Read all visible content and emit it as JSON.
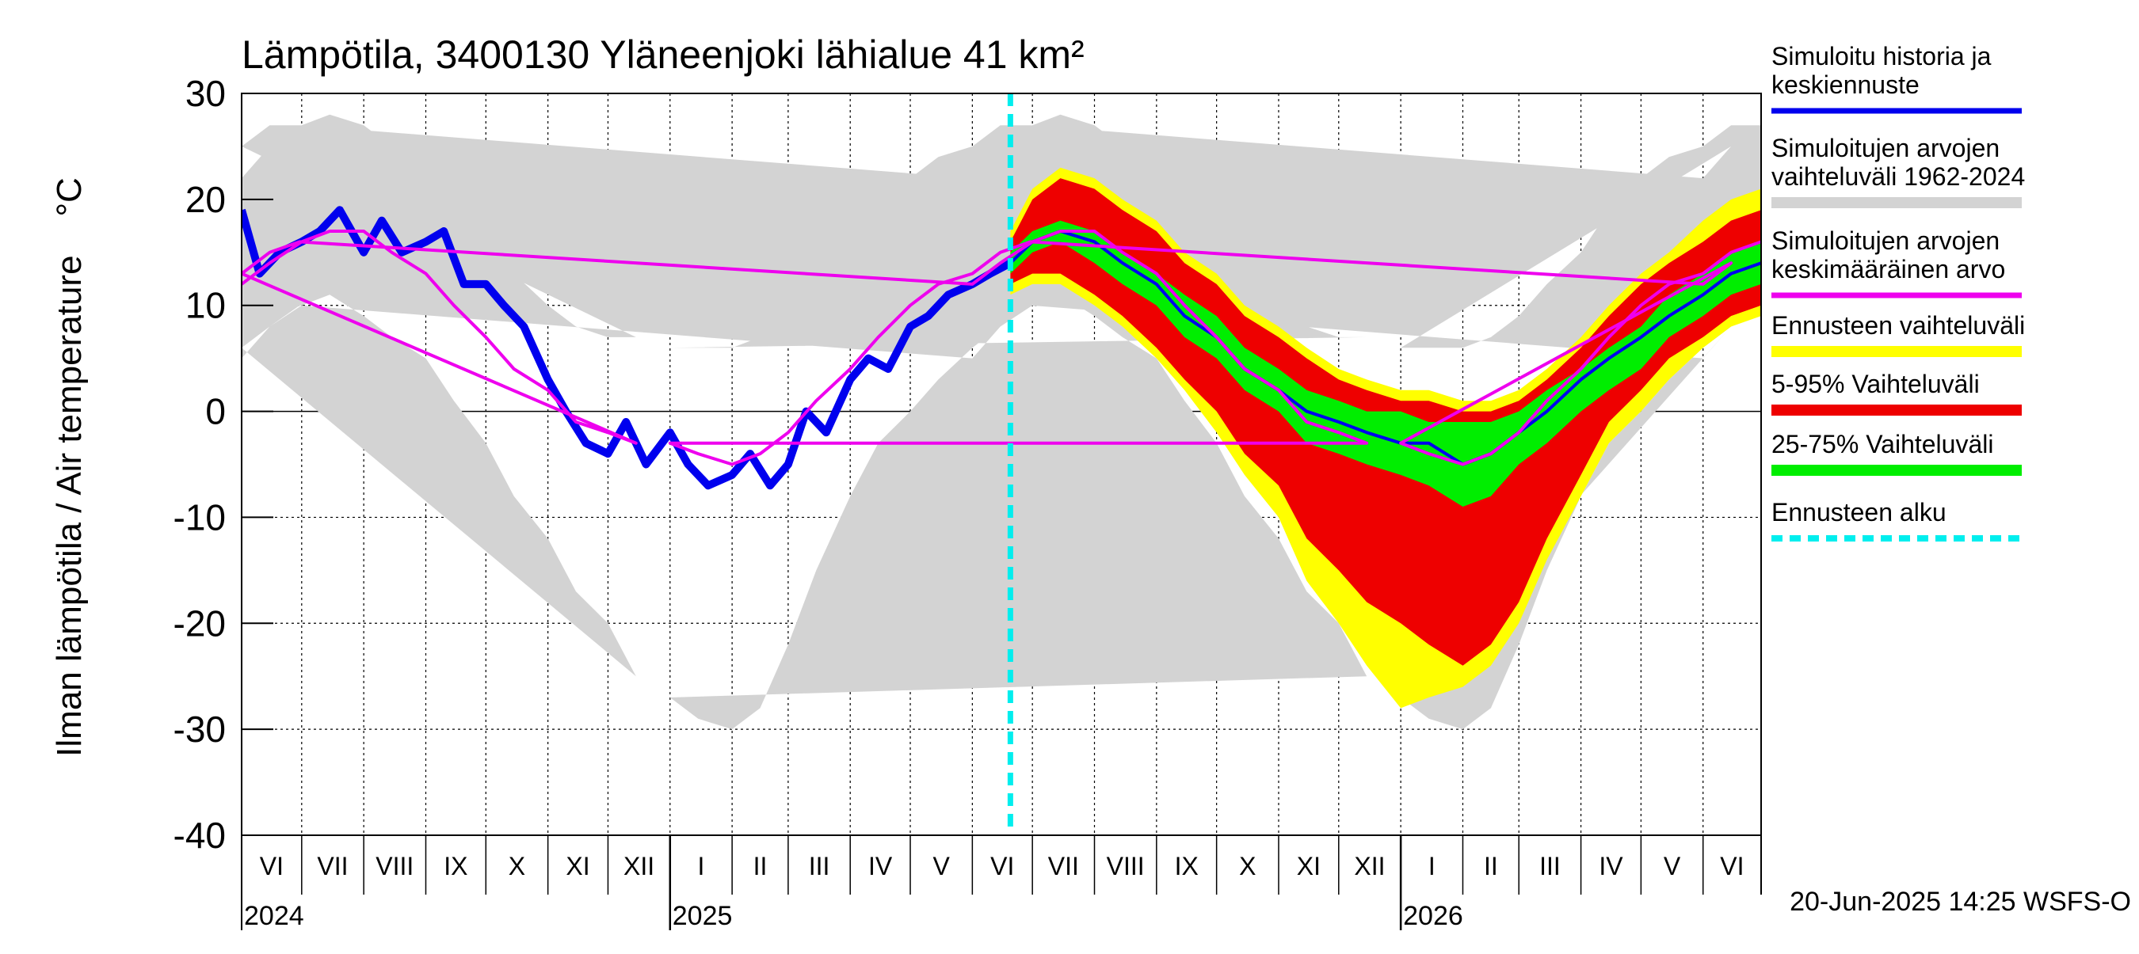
{
  "chart_data": {
    "type": "area",
    "title": "Lämpötila, 3400130 Yläneenjoki lähialue 41 km²",
    "ylabel": "Ilman lämpötila / Air temperature    °C",
    "ylim": [
      -40,
      30
    ],
    "yticks": [
      30,
      20,
      10,
      0,
      -10,
      -20,
      -30,
      -40
    ],
    "ytick_labels": [
      "30",
      "20",
      "10",
      "0",
      "-10",
      "-20",
      "-30",
      "-40"
    ],
    "x_range": [
      "2024-06-01",
      "2026-06-30"
    ],
    "grid": true,
    "legend_position": "right",
    "months": [
      {
        "label": "VI",
        "date": "2024-06-01"
      },
      {
        "label": "VII",
        "date": "2024-07-01"
      },
      {
        "label": "VIII",
        "date": "2024-08-01"
      },
      {
        "label": "IX",
        "date": "2024-09-01"
      },
      {
        "label": "X",
        "date": "2024-10-01"
      },
      {
        "label": "XI",
        "date": "2024-11-01"
      },
      {
        "label": "XII",
        "date": "2024-12-01"
      },
      {
        "label": "I",
        "date": "2025-01-01"
      },
      {
        "label": "II",
        "date": "2025-02-01"
      },
      {
        "label": "III",
        "date": "2025-03-01"
      },
      {
        "label": "IV",
        "date": "2025-04-01"
      },
      {
        "label": "V",
        "date": "2025-05-01"
      },
      {
        "label": "VI",
        "date": "2025-06-01"
      },
      {
        "label": "VII",
        "date": "2025-07-01"
      },
      {
        "label": "VIII",
        "date": "2025-08-01"
      },
      {
        "label": "IX",
        "date": "2025-09-01"
      },
      {
        "label": "X",
        "date": "2025-10-01"
      },
      {
        "label": "XI",
        "date": "2025-11-01"
      },
      {
        "label": "XII",
        "date": "2025-12-01"
      },
      {
        "label": "I",
        "date": "2026-01-01"
      },
      {
        "label": "II",
        "date": "2026-02-01"
      },
      {
        "label": "III",
        "date": "2026-03-01"
      },
      {
        "label": "IV",
        "date": "2026-04-01"
      },
      {
        "label": "V",
        "date": "2026-05-01"
      },
      {
        "label": "VI",
        "date": "2026-06-01"
      },
      {
        "label": "",
        "date": "2026-07-01"
      }
    ],
    "years": [
      {
        "label": "2024",
        "date": "2024-06-01"
      },
      {
        "label": "2025",
        "date": "2025-01-01"
      },
      {
        "label": "2026",
        "date": "2026-01-01"
      }
    ],
    "forecast_start": "2025-06-20",
    "footer": "20-Jun-2025 14:25 WSFS-O",
    "colors": {
      "history": "#0000ee",
      "range_1962_2024": "#d3d3d3",
      "mean": "#ee00ee",
      "forecast_range": "#ffff00",
      "p5_95": "#ee0000",
      "p25_75": "#00ee00",
      "forecast_start": "#00eeee"
    },
    "series": [
      {
        "name": "Simuloitu historia ja keskiennuste",
        "key": "history",
        "style": "line"
      },
      {
        "name": "Simuloitujen arvojen vaihteluväli 1962-2024",
        "key": "range_1962_2024",
        "style": "band"
      },
      {
        "name": "Simuloitujen arvojen keskimääräinen arvo",
        "key": "mean",
        "style": "line"
      },
      {
        "name": "Ennusteen vaihteluväli",
        "key": "forecast_range",
        "style": "band"
      },
      {
        "name": "5-95% Vaihteluväli",
        "key": "p5_95",
        "style": "band"
      },
      {
        "name": "25-75% Vaihteluväli",
        "key": "p25_75",
        "style": "band"
      },
      {
        "name": "Ennusteen alku",
        "key": "forecast_start",
        "style": "dashed"
      }
    ],
    "climatology": {
      "date": [
        "06-01",
        "06-15",
        "07-01",
        "07-15",
        "08-01",
        "08-15",
        "09-01",
        "09-15",
        "10-01",
        "10-15",
        "11-01",
        "11-15",
        "12-01",
        "12-15",
        "01-01",
        "01-15",
        "02-01",
        "02-15",
        "03-01",
        "03-15",
        "04-01",
        "04-15",
        "05-01",
        "05-15",
        "06-01",
        "06-15",
        "06-30"
      ],
      "mean": [
        12,
        14,
        16,
        17,
        17,
        15,
        13,
        10,
        7,
        4,
        2,
        -1,
        -2,
        -3,
        -3,
        -4,
        -5,
        -4,
        -2,
        1,
        4,
        7,
        10,
        12,
        13,
        15,
        16
      ],
      "min": [
        5,
        8,
        10,
        11,
        9,
        7,
        5,
        1,
        -3,
        -8,
        -12,
        -17,
        -20,
        -25,
        -27,
        -29,
        -30,
        -28,
        -22,
        -15,
        -8,
        -3,
        0,
        3,
        6,
        8,
        10
      ],
      "max": [
        22,
        25,
        27,
        28,
        27,
        25,
        22,
        19,
        16,
        13,
        10,
        8,
        7,
        7,
        6,
        6,
        6,
        7,
        9,
        12,
        15,
        19,
        22,
        24,
        25,
        27,
        27
      ]
    },
    "history": {
      "date": [
        "2024-06-01",
        "2024-06-10",
        "2024-06-20",
        "2024-07-01",
        "2024-07-10",
        "2024-07-20",
        "2024-08-01",
        "2024-08-10",
        "2024-08-20",
        "2024-09-01",
        "2024-09-10",
        "2024-09-20",
        "2024-10-01",
        "2024-10-10",
        "2024-10-20",
        "2024-11-01",
        "2024-11-10",
        "2024-11-20",
        "2024-12-01",
        "2024-12-10",
        "2024-12-20",
        "2025-01-01",
        "2025-01-10",
        "2025-01-20",
        "2025-02-01",
        "2025-02-10",
        "2025-02-20",
        "2025-03-01",
        "2025-03-10",
        "2025-03-20",
        "2025-04-01",
        "2025-04-10",
        "2025-04-20",
        "2025-05-01",
        "2025-05-10",
        "2025-05-20",
        "2025-06-01",
        "2025-06-10",
        "2025-06-20"
      ],
      "value": [
        19,
        13,
        15,
        16,
        17,
        19,
        15,
        18,
        15,
        16,
        17,
        12,
        12,
        10,
        8,
        3,
        0,
        -3,
        -4,
        -1,
        -5,
        -2,
        -5,
        -7,
        -6,
        -4,
        -7,
        -5,
        0,
        -2,
        3,
        5,
        4,
        8,
        9,
        11,
        12,
        13,
        14
      ]
    },
    "forecast": {
      "date": [
        "2025-06-20",
        "2025-07-01",
        "2025-07-15",
        "2025-08-01",
        "2025-08-15",
        "2025-09-01",
        "2025-09-15",
        "2025-10-01",
        "2025-10-15",
        "2025-11-01",
        "2025-11-15",
        "2025-12-01",
        "2025-12-15",
        "2026-01-01",
        "2026-01-15",
        "2026-02-01",
        "2026-02-15",
        "2026-03-01",
        "2026-03-15",
        "2026-04-01",
        "2026-04-15",
        "2026-05-01",
        "2026-05-15",
        "2026-06-01",
        "2026-06-15",
        "2026-06-30"
      ],
      "median": [
        14,
        16,
        17,
        16,
        14,
        12,
        9,
        7,
        4,
        2,
        0,
        -1,
        -2,
        -3,
        -3,
        -5,
        -4,
        -2,
        0,
        3,
        5,
        7,
        9,
        11,
        13,
        14
      ],
      "mean": [
        14,
        16,
        17,
        16,
        14,
        12,
        9,
        7,
        4,
        2,
        0,
        -1,
        -2,
        -3,
        -3,
        -5,
        -4,
        -2,
        0,
        3,
        5,
        7,
        9,
        11,
        13,
        14
      ],
      "p25": [
        13,
        15,
        16,
        14,
        12,
        10,
        7,
        5,
        2,
        0,
        -3,
        -4,
        -5,
        -6,
        -7,
        -9,
        -8,
        -5,
        -3,
        0,
        2,
        4,
        7,
        9,
        11,
        12
      ],
      "p75": [
        15,
        17,
        18,
        17,
        15,
        13,
        11,
        9,
        6,
        4,
        2,
        1,
        0,
        0,
        -1,
        -1,
        -1,
        0,
        2,
        4,
        6,
        8,
        11,
        13,
        15,
        16
      ],
      "p5": [
        12,
        13,
        13,
        11,
        9,
        6,
        3,
        0,
        -4,
        -7,
        -12,
        -15,
        -18,
        -20,
        -22,
        -24,
        -22,
        -18,
        -12,
        -6,
        -1,
        2,
        5,
        7,
        9,
        10
      ],
      "p95": [
        16,
        20,
        22,
        21,
        19,
        17,
        14,
        12,
        9,
        7,
        5,
        3,
        2,
        1,
        1,
        0,
        0,
        1,
        3,
        6,
        9,
        12,
        14,
        16,
        18,
        19
      ],
      "min": [
        11,
        12,
        12,
        10,
        8,
        5,
        2,
        -2,
        -6,
        -10,
        -16,
        -20,
        -24,
        -28,
        -27,
        -26,
        -24,
        -20,
        -14,
        -8,
        -3,
        0,
        3,
        6,
        8,
        9
      ],
      "max": [
        17,
        21,
        23,
        22,
        20,
        18,
        15,
        13,
        10,
        8,
        6,
        4,
        3,
        2,
        2,
        1,
        1,
        2,
        4,
        7,
        10,
        13,
        15,
        18,
        20,
        21
      ]
    }
  }
}
